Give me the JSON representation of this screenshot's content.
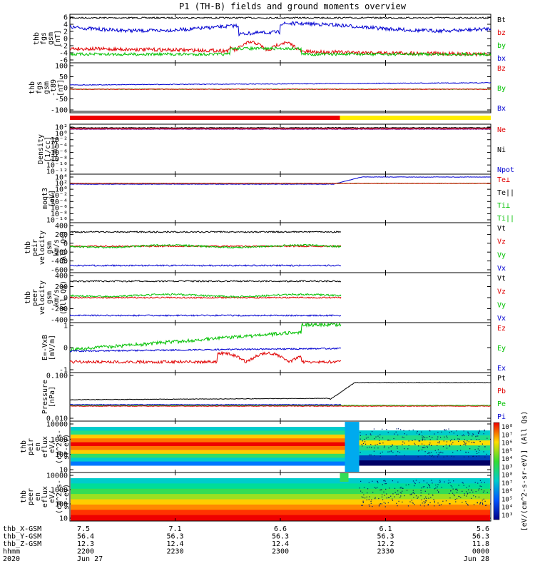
{
  "title": "P1 (TH-B) fields and ground moments overview",
  "chart_data": {
    "type": "line",
    "panels": [
      {
        "id": "fgs",
        "ylabel": [
          "thb",
          "fgs",
          "gsm",
          "[nT]"
        ],
        "yticks": [
          "6",
          "4",
          "2",
          "0",
          "-2",
          "-4",
          "-6"
        ],
        "ylim": [
          -6,
          6
        ],
        "legend": [
          {
            "label": "Bt",
            "color": "#000000"
          },
          {
            "label": "bz",
            "color": "#e00000"
          },
          {
            "label": "by",
            "color": "#00c000"
          },
          {
            "label": "bx",
            "color": "#0000d0"
          }
        ]
      },
      {
        "id": "fgs_t89",
        "ylabel": [
          "thb",
          "fgs",
          "gsm",
          "-t89",
          "[nT]"
        ],
        "yticks": [
          "100",
          "50",
          "0",
          "-50",
          "-100"
        ],
        "ylim": [
          -130,
          120
        ],
        "legend": [
          {
            "label": "Bz",
            "color": "#e00000"
          },
          {
            "label": "By",
            "color": "#00c000"
          },
          {
            "label": "Bx",
            "color": "#0000d0"
          }
        ]
      },
      {
        "id": "density",
        "ylabel": [
          "Density",
          "[1/cc]",
          "[cm-3]"
        ],
        "yticks": [
          "10²",
          "10⁰",
          "10⁻²",
          "10⁻⁴",
          "10⁻⁶",
          "10⁻⁸",
          "10⁻¹⁰",
          "10⁻¹²"
        ],
        "ylim_log": [
          -12,
          2
        ],
        "legend": [
          {
            "label": "Ne",
            "color": "#e00000"
          },
          {
            "label": "Ni",
            "color": "#000000"
          },
          {
            "label": "Npot",
            "color": "#0000d0"
          }
        ]
      },
      {
        "id": "temp",
        "ylabel": [
          "moqt3",
          "[eV]"
        ],
        "yticks": [
          "10⁴",
          "10²",
          "10⁰",
          "10⁻²",
          "10⁻⁴",
          "10⁻⁶",
          "10⁻⁸",
          "10⁻¹⁰"
        ],
        "ylim_log": [
          -10,
          4
        ],
        "legend": [
          {
            "label": "Te⊥",
            "color": "#e00000"
          },
          {
            "label": "Te||",
            "color": "#000000"
          },
          {
            "label": "Ti⊥",
            "color": "#00c000"
          },
          {
            "label": "Ti||",
            "color": "#00c000"
          }
        ]
      },
      {
        "id": "peir_vel",
        "ylabel": [
          "thb",
          "peir",
          "velocity",
          "gsm",
          "km/s",
          "(All Qs)"
        ],
        "yticks": [
          "400",
          "200",
          "0",
          "-200",
          "-400",
          "-600"
        ],
        "ylim": [
          -600,
          500
        ],
        "legend": [
          {
            "label": "Vt",
            "color": "#000000"
          },
          {
            "label": "Vz",
            "color": "#e00000"
          },
          {
            "label": "Vy",
            "color": "#00c000"
          },
          {
            "label": "Vx",
            "color": "#0000d0"
          }
        ]
      },
      {
        "id": "peer_vel",
        "ylabel": [
          "thb",
          "peer",
          "velocity",
          "gsm",
          "km/s",
          "(All Qs)"
        ],
        "yticks": [
          "400",
          "200",
          "0",
          "-200",
          "-400"
        ],
        "ylim": [
          -400,
          450
        ],
        "legend": [
          {
            "label": "Vt",
            "color": "#000000"
          },
          {
            "label": "Vz",
            "color": "#e00000"
          },
          {
            "label": "Vy",
            "color": "#00c000"
          },
          {
            "label": "Vx",
            "color": "#0000d0"
          }
        ]
      },
      {
        "id": "efield",
        "ylabel": [
          "E=-VxB",
          "[mV/m]"
        ],
        "yticks": [
          "1",
          "0",
          "-1"
        ],
        "ylim": [
          -2,
          2
        ],
        "legend": [
          {
            "label": "Ez",
            "color": "#e00000"
          },
          {
            "label": "Ey",
            "color": "#00c000"
          },
          {
            "label": "Ex",
            "color": "#0000d0"
          }
        ]
      },
      {
        "id": "pressure",
        "ylabel": [
          "Pressure",
          "[nPa]"
        ],
        "yticks": [
          "0.100",
          "0.010"
        ],
        "ylim_log": [
          -2.5,
          -0.5
        ],
        "legend": [
          {
            "label": "Pt",
            "color": "#000000"
          },
          {
            "label": "Pb",
            "color": "#e00000"
          },
          {
            "label": "Pe",
            "color": "#00c000"
          },
          {
            "label": "Pi",
            "color": "#0000d0"
          }
        ]
      },
      {
        "id": "peir_en",
        "type": "heatmap",
        "ylabel": [
          "thb",
          "peir",
          "en",
          "eflux",
          "eV/",
          "(cm^2-s-",
          "sr-eV)"
        ],
        "yticks": [
          "10000",
          "1000",
          "100",
          "10"
        ],
        "ylim_log": [
          0.7,
          4.3
        ]
      },
      {
        "id": "peer_en",
        "type": "heatmap",
        "ylabel": [
          "thb",
          "peer",
          "en",
          "eflux",
          "eV/",
          "(cm^2-s-",
          "sr-eV)"
        ],
        "yticks": [
          "10000",
          "1000",
          "100",
          "10"
        ],
        "ylim_log": [
          0.7,
          4.3
        ]
      }
    ],
    "colorbar": {
      "label": "[eV/(cm^2-s-sr-eV)] (All Qs)",
      "ticks": [
        "10⁸",
        "10⁷",
        "10⁶",
        "10⁵",
        "10⁴",
        "10³",
        "10⁸",
        "10⁷",
        "10⁶",
        "10⁵",
        "10⁴",
        "10³"
      ]
    },
    "x_axis": {
      "row_labels": [
        "thb_X-GSM",
        "thb_Y-GSM",
        "thb_Z-GSM",
        "hhmm",
        "2020"
      ],
      "ticks": [
        {
          "values": [
            "7.5",
            "56.4",
            "12.3",
            "2200",
            "Jun 27"
          ]
        },
        {
          "values": [
            "7.1",
            "56.3",
            "12.4",
            "2230",
            ""
          ]
        },
        {
          "values": [
            "6.6",
            "56.3",
            "12.4",
            "2300",
            ""
          ]
        },
        {
          "values": [
            "6.1",
            "56.3",
            "12.2",
            "2330",
            ""
          ]
        },
        {
          "values": [
            "5.6",
            "56.3",
            "11.8",
            "0000",
            "Jun 28"
          ]
        }
      ]
    }
  }
}
